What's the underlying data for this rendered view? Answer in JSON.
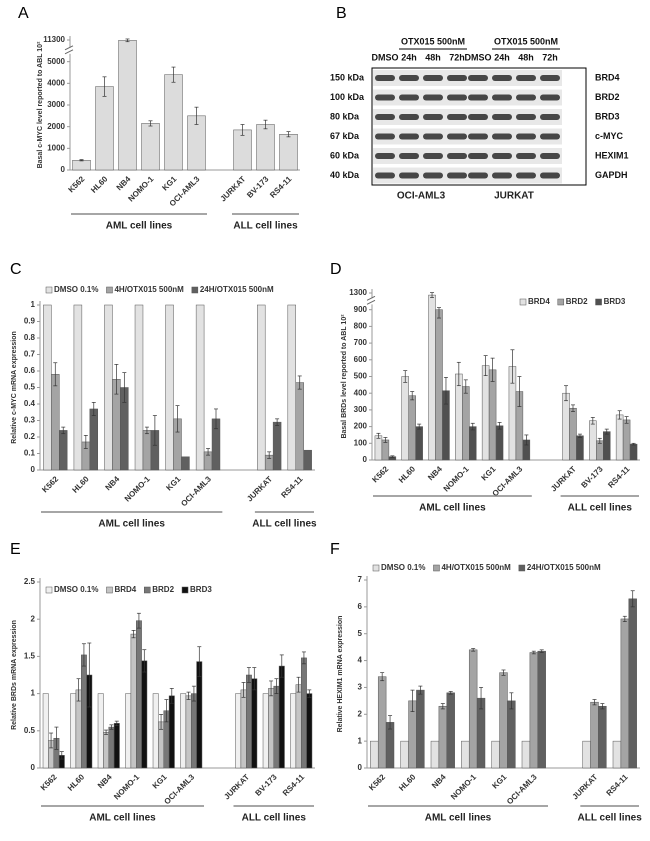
{
  "chart_data": [
    {
      "type": "bar",
      "panel": "A",
      "y_title": "Basal c-MYC level reported to ABL 10²",
      "categories": [
        "K562",
        "HL60",
        "NB4",
        "NOMO-1",
        "KG1",
        "OCI-AML3",
        null,
        "JURKAT",
        "BV-173",
        "RS4-11"
      ],
      "values": [
        450,
        3850,
        11200,
        2150,
        4400,
        2500,
        null,
        1850,
        2100,
        1650
      ],
      "errors": [
        30,
        450,
        400,
        120,
        350,
        400,
        null,
        250,
        200,
        120
      ],
      "color": "#dcdcdc",
      "axis_break": true,
      "ylim": [
        0,
        11300
      ],
      "yticks": [
        0,
        1000,
        2000,
        3000,
        4000,
        5000,
        11300
      ],
      "groups": [
        {
          "label": "AML cell lines",
          "categories": [
            "K562",
            "HL60",
            "NB4",
            "NOMO-1",
            "KG1",
            "OCI-AML3"
          ]
        },
        {
          "label": "ALL cell lines",
          "categories": [
            "JURKAT",
            "BV-173",
            "RS4-11"
          ]
        }
      ]
    },
    {
      "type": "bar",
      "panel": "C",
      "y_title": "Relative c-MYC mRNA expression",
      "categories": [
        "K562",
        "HL60",
        "NB4",
        "NOMO-1",
        "KG1",
        "OCI-AML3",
        null,
        "JURKAT",
        "RS4-11"
      ],
      "series": [
        {
          "name": "DMSO 0.1%",
          "color": "#e2e2e2",
          "values": [
            1,
            1,
            1,
            1,
            1,
            1,
            null,
            1,
            1
          ]
        },
        {
          "name": "4H/OTX015 500nM",
          "color": "#a4a4a4",
          "values": [
            0.58,
            0.17,
            0.55,
            0.24,
            0.31,
            0.11,
            null,
            0.09,
            0.53
          ],
          "errors": [
            0.07,
            0.04,
            0.09,
            0.02,
            0.08,
            0.02,
            null,
            0.02,
            0.04
          ]
        },
        {
          "name": "24H/OTX015 500nM",
          "color": "#606060",
          "values": [
            0.24,
            0.37,
            0.5,
            0.24,
            0.08,
            0.31,
            null,
            0.29,
            0.12
          ],
          "errors": [
            0.02,
            0.04,
            0.09,
            0.09,
            null,
            0.06,
            null,
            0.02,
            null
          ]
        }
      ],
      "legend": "top",
      "ylim": [
        0,
        1
      ],
      "yticks": [
        0,
        0.1,
        0.2,
        0.3,
        0.4,
        0.5,
        0.6,
        0.7,
        0.8,
        0.9,
        1
      ],
      "groups": [
        {
          "label": "AML cell lines",
          "categories": [
            "K562",
            "HL60",
            "NB4",
            "NOMO-1",
            "KG1",
            "OCI-AML3"
          ]
        },
        {
          "label": "ALL cell lines",
          "categories": [
            "JURKAT",
            "RS4-11"
          ]
        }
      ]
    },
    {
      "type": "bar",
      "panel": "D",
      "y_title": "Basal BRDs level reported to ABL 10²",
      "categories": [
        "K562",
        "HL60",
        "NB4",
        "NOMO-1",
        "KG1",
        "OCI-AML3",
        null,
        "JURKAT",
        "BV-173",
        "RS4-11"
      ],
      "series": [
        {
          "name": "BRD4",
          "color": "#e2e2e2",
          "values": [
            145,
            500,
            1250,
            515,
            565,
            560,
            null,
            400,
            235,
            270
          ],
          "errors": [
            15,
            35,
            60,
            70,
            60,
            100,
            null,
            45,
            20,
            25
          ]
        },
        {
          "name": "BRD2",
          "color": "#a4a4a4",
          "values": [
            120,
            385,
            900,
            440,
            540,
            410,
            null,
            310,
            115,
            240
          ],
          "errors": [
            15,
            25,
            50,
            40,
            70,
            90,
            null,
            20,
            15,
            20
          ]
        },
        {
          "name": "BRD3",
          "color": "#505050",
          "values": [
            20,
            200,
            415,
            200,
            205,
            120,
            null,
            145,
            170,
            95
          ],
          "errors": [
            5,
            15,
            80,
            20,
            20,
            30,
            null,
            10,
            15,
            5
          ]
        }
      ],
      "legend": "top-right",
      "axis_break": true,
      "ylim": [
        0,
        1300
      ],
      "yticks": [
        0,
        100,
        200,
        300,
        400,
        500,
        600,
        700,
        800,
        900,
        1300
      ],
      "groups": [
        {
          "label": "AML cell lines",
          "categories": [
            "K562",
            "HL60",
            "NB4",
            "NOMO-1",
            "KG1",
            "OCI-AML3"
          ]
        },
        {
          "label": "ALL cell lines",
          "categories": [
            "JURKAT",
            "BV-173",
            "RS4-11"
          ]
        }
      ]
    },
    {
      "type": "bar",
      "panel": "E",
      "y_title": "Relative BRDs mRNA expression",
      "categories": [
        "K562",
        "HL60",
        "NB4",
        "NOMO-1",
        "KG1",
        "OCI-AML3",
        null,
        "JURKAT",
        "BV-173",
        "RS4-11"
      ],
      "series": [
        {
          "name": "DMSO 0.1%",
          "color": "#f0f0f0",
          "values": [
            1,
            1,
            1,
            1,
            1,
            1,
            null,
            1,
            1,
            1
          ]
        },
        {
          "name": "BRD4",
          "color": "#c4c4c4",
          "values": [
            0.37,
            1.05,
            0.48,
            1.8,
            0.62,
            0.97,
            null,
            1.05,
            1.07,
            1.12
          ],
          "errors": [
            0.1,
            0.15,
            0.03,
            0.05,
            0.1,
            0.05,
            null,
            0.1,
            0.1,
            0.1
          ]
        },
        {
          "name": "BRD2",
          "color": "#777777",
          "values": [
            0.4,
            1.52,
            0.55,
            1.98,
            0.77,
            1,
            null,
            1.25,
            1.1,
            1.48
          ],
          "errors": [
            0.15,
            0.15,
            0.03,
            0.1,
            0.15,
            0.1,
            null,
            0.1,
            0.1,
            0.08
          ]
        },
        {
          "name": "BRD3",
          "color": "#111111",
          "values": [
            0.17,
            1.25,
            0.6,
            1.44,
            0.97,
            1.43,
            null,
            1.2,
            1.37,
            1
          ],
          "errors": [
            0.05,
            0.43,
            0.03,
            0.15,
            0.1,
            0.2,
            null,
            0.15,
            0.15,
            0.05
          ]
        }
      ],
      "legend": "top",
      "ylim": [
        0,
        2.5
      ],
      "yticks": [
        0,
        0.5,
        1,
        1.5,
        2,
        2.5
      ],
      "groups": [
        {
          "label": "AML cell lines",
          "categories": [
            "K562",
            "HL60",
            "NB4",
            "NOMO-1",
            "KG1",
            "OCI-AML3"
          ]
        },
        {
          "label": "ALL cell lines",
          "categories": [
            "JURKAT",
            "BV-173",
            "RS4-11"
          ]
        }
      ]
    },
    {
      "type": "bar",
      "panel": "F",
      "y_title": "Relative HEXIM1 mRNA expression",
      "categories": [
        "K562",
        "HL60",
        "NB4",
        "NOMO-1",
        "KG1",
        "OCI-AML3",
        null,
        "JURKAT",
        "RS4-11"
      ],
      "series": [
        {
          "name": "DMSO 0.1%",
          "color": "#e2e2e2",
          "values": [
            1,
            1,
            1,
            1,
            1,
            1,
            null,
            1,
            1
          ]
        },
        {
          "name": "4H/OTX015 500nM",
          "color": "#a4a4a4",
          "values": [
            3.4,
            2.5,
            2.3,
            4.4,
            3.55,
            4.3,
            null,
            2.45,
            5.55
          ],
          "errors": [
            0.15,
            0.4,
            0.1,
            0.05,
            0.1,
            0.05,
            null,
            0.1,
            0.1
          ]
        },
        {
          "name": "24H/OTX015 500nM",
          "color": "#606060",
          "values": [
            1.7,
            2.9,
            2.8,
            2.6,
            2.5,
            4.35,
            null,
            2.3,
            6.3
          ],
          "errors": [
            0.25,
            0.15,
            0.05,
            0.4,
            0.3,
            0.05,
            null,
            0.1,
            0.3
          ]
        }
      ],
      "legend": "top",
      "ylim": [
        0,
        7
      ],
      "yticks": [
        0,
        1,
        2,
        3,
        4,
        5,
        6,
        7
      ],
      "groups": [
        {
          "label": "AML cell lines",
          "categories": [
            "K562",
            "HL60",
            "NB4",
            "NOMO-1",
            "KG1",
            "OCI-AML3"
          ]
        },
        {
          "label": "ALL cell lines",
          "categories": [
            "JURKAT",
            "RS4-11"
          ]
        }
      ]
    }
  ],
  "blot": {
    "panel": "B",
    "headers": [
      "OTX015 500nM",
      "OTX015 500nM"
    ],
    "lanes": [
      "DMSO",
      "24h",
      "48h",
      "72h",
      "DMSO",
      "24h",
      "48h",
      "72h"
    ],
    "rows": [
      {
        "size": "150 kDa",
        "protein": "BRD4"
      },
      {
        "size": "100 kDa",
        "protein": "BRD2"
      },
      {
        "size": "80 kDa",
        "protein": "BRD3"
      },
      {
        "size": "67 kDa",
        "protein": "c-MYC"
      },
      {
        "size": "60 kDa",
        "protein": "HEXIM1"
      },
      {
        "size": "40 kDa",
        "protein": "GAPDH"
      }
    ],
    "cell_lines": [
      "OCI-AML3",
      "JURKAT"
    ]
  }
}
